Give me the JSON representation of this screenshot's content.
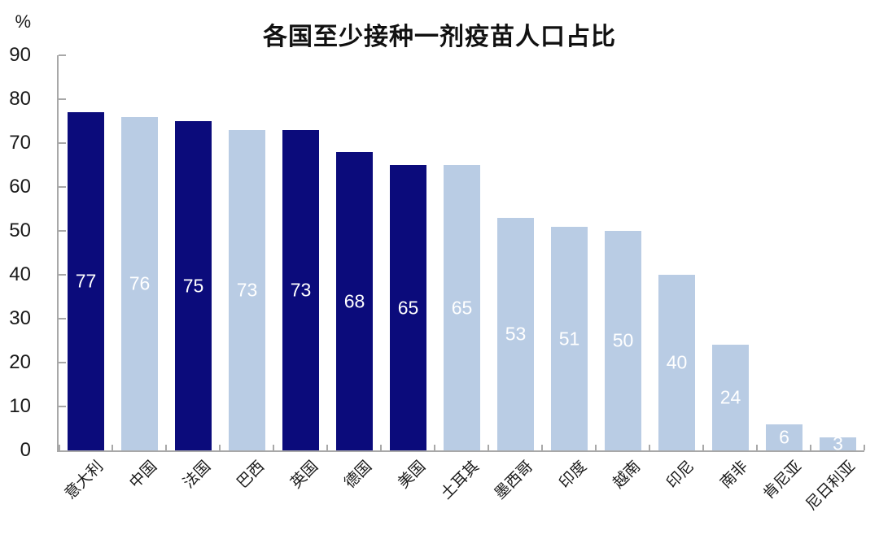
{
  "title": "各国至少接种一剂疫苗人口占比",
  "y_unit_label": "%",
  "chart_data": {
    "type": "bar",
    "title": "各国至少接种一剂疫苗人口占比",
    "xlabel": "",
    "ylabel": "%",
    "ylim": [
      0,
      90
    ],
    "yticks": [
      0,
      10,
      20,
      30,
      40,
      50,
      60,
      70,
      80,
      90
    ],
    "grid": false,
    "legend": null,
    "categories": [
      "意大利",
      "中国",
      "法国",
      "巴西",
      "英国",
      "德国",
      "美国",
      "土耳其",
      "墨西哥",
      "印度",
      "越南",
      "印尼",
      "南非",
      "肯尼亚",
      "尼日利亚"
    ],
    "values": [
      77,
      76,
      75,
      73,
      73,
      68,
      65,
      65,
      53,
      51,
      50,
      40,
      24,
      6,
      3
    ],
    "bar_color_roles": [
      "dark",
      "light",
      "dark",
      "light",
      "dark",
      "dark",
      "dark",
      "light",
      "light",
      "light",
      "light",
      "light",
      "light",
      "light",
      "light"
    ],
    "colors": {
      "dark_bar": "#0b0b7b",
      "light_bar": "#b9cce4",
      "value_label": "#ffffff",
      "axis": "#a8a8a8",
      "text": "#1a1a1a"
    }
  }
}
